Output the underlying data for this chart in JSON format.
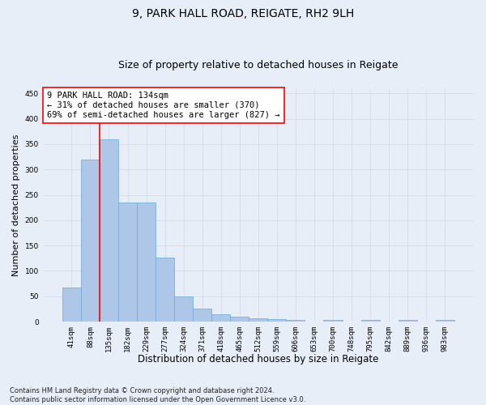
{
  "title1": "9, PARK HALL ROAD, REIGATE, RH2 9LH",
  "title2": "Size of property relative to detached houses in Reigate",
  "xlabel": "Distribution of detached houses by size in Reigate",
  "ylabel": "Number of detached properties",
  "categories": [
    "41sqm",
    "88sqm",
    "135sqm",
    "182sqm",
    "229sqm",
    "277sqm",
    "324sqm",
    "371sqm",
    "418sqm",
    "465sqm",
    "512sqm",
    "559sqm",
    "606sqm",
    "653sqm",
    "700sqm",
    "748sqm",
    "795sqm",
    "842sqm",
    "889sqm",
    "936sqm",
    "983sqm"
  ],
  "values": [
    67,
    320,
    360,
    235,
    235,
    127,
    50,
    25,
    15,
    10,
    7,
    5,
    3,
    0,
    3,
    0,
    3,
    0,
    3,
    0,
    3
  ],
  "bar_color": "#aec6e8",
  "bar_edge_color": "#6aaad4",
  "grid_color": "#d0d8e8",
  "annotation_box_text": "9 PARK HALL ROAD: 134sqm\n← 31% of detached houses are smaller (370)\n69% of semi-detached houses are larger (827) →",
  "vline_x_index": 2,
  "vline_color": "red",
  "footnote": "Contains HM Land Registry data © Crown copyright and database right 2024.\nContains public sector information licensed under the Open Government Licence v3.0.",
  "ylim": [
    0,
    460
  ],
  "background_color": "#e8eef8",
  "plot_bg_color": "#e8eef8",
  "title1_fontsize": 10,
  "title2_fontsize": 9,
  "xlabel_fontsize": 8.5,
  "ylabel_fontsize": 8,
  "tick_fontsize": 6.5,
  "annot_fontsize": 7.5,
  "footnote_fontsize": 6
}
